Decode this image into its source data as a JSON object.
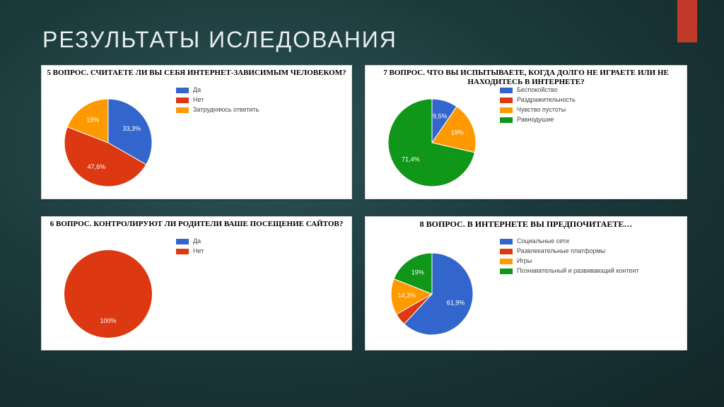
{
  "page": {
    "title": "РЕЗУЛЬТАТЫ ИСЛЕДОВАНИЯ",
    "title_color": "#e8eeef",
    "title_fontsize": 32,
    "background_gradient": [
      "#2d5456",
      "#1c3a3c",
      "#122728"
    ],
    "ribbon_color": "#c0392b"
  },
  "charts": [
    {
      "id": "q5",
      "type": "pie",
      "title": "5 ВОПРОС. СЧИТАЕТЕ ЛИ ВЫ СЕБЯ ИНТЕРНЕТ-ЗАВИСИМЫМ ЧЕЛОВЕКОМ?",
      "title_fontsize": 11,
      "title_font": "Times New Roman",
      "pie_radius": 62,
      "background_color": "#ffffff",
      "legend": [
        {
          "label": "Да",
          "color": "#3366cc"
        },
        {
          "label": "Нет",
          "color": "#dc3912"
        },
        {
          "label": "Затрудняюсь ответить",
          "color": "#ff9900"
        }
      ],
      "slices": [
        {
          "value": 33.3,
          "label": "33,3%",
          "color": "#3366cc"
        },
        {
          "value": 47.6,
          "label": "47,6%",
          "color": "#dc3912"
        },
        {
          "value": 19.1,
          "label": "19%",
          "color": "#ff9900"
        }
      ]
    },
    {
      "id": "q7",
      "type": "pie",
      "title": "7 ВОПРОС. ЧТО ВЫ ИСПЫТЫВАЕТЕ, КОГДА ДОЛГО НЕ ИГРАЕТЕ ИЛИ НЕ НАХОДИТЕСЬ В ИНТЕРНЕТЕ?",
      "title_fontsize": 11,
      "title_font": "Times New Roman",
      "pie_radius": 62,
      "background_color": "#ffffff",
      "legend": [
        {
          "label": "Беспокойство",
          "color": "#3366cc"
        },
        {
          "label": "Раздражительность",
          "color": "#dc3912"
        },
        {
          "label": "Чувство пустоты",
          "color": "#ff9900"
        },
        {
          "label": "Равнодушие",
          "color": "#109618"
        }
      ],
      "slices": [
        {
          "value": 9.5,
          "label": "9,5%",
          "color": "#3366cc"
        },
        {
          "value": 0,
          "label": "",
          "color": "#dc3912"
        },
        {
          "value": 19.1,
          "label": "19%",
          "color": "#ff9900"
        },
        {
          "value": 71.4,
          "label": "71,4%",
          "color": "#109618"
        }
      ]
    },
    {
      "id": "q6",
      "type": "pie",
      "title": "6 ВОПРОС. КОНТРОЛИРУЮТ ЛИ РОДИТЕЛИ ВАШЕ ПОСЕЩЕНИЕ САЙТОВ?",
      "title_fontsize": 11,
      "title_font": "Times New Roman",
      "pie_radius": 62,
      "background_color": "#ffffff",
      "legend": [
        {
          "label": "Да",
          "color": "#3366cc"
        },
        {
          "label": "Нет",
          "color": "#dc3912"
        }
      ],
      "slices": [
        {
          "value": 0,
          "label": "",
          "color": "#3366cc"
        },
        {
          "value": 100,
          "label": "100%",
          "color": "#dc3912"
        }
      ]
    },
    {
      "id": "q8",
      "type": "pie",
      "title": "8 ВОПРОС. В ИНТЕРНЕТЕ ВЫ ПРЕДПОЧИТАЕТЕ…",
      "title_fontsize": 12,
      "title_font": "Times New Roman",
      "pie_radius": 58,
      "background_color": "#ffffff",
      "legend": [
        {
          "label": "Социальные сети",
          "color": "#3366cc"
        },
        {
          "label": "Развлекательные платформы",
          "color": "#dc3912"
        },
        {
          "label": "Игры",
          "color": "#ff9900"
        },
        {
          "label": "Познавательный и развивающий контент",
          "color": "#109618"
        }
      ],
      "slices": [
        {
          "value": 61.9,
          "label": "61,9%",
          "color": "#3366cc"
        },
        {
          "value": 4.8,
          "label": "",
          "color": "#dc3912"
        },
        {
          "value": 14.3,
          "label": "14,3%",
          "color": "#ff9900"
        },
        {
          "value": 19.0,
          "label": "19%",
          "color": "#109618"
        }
      ]
    }
  ]
}
